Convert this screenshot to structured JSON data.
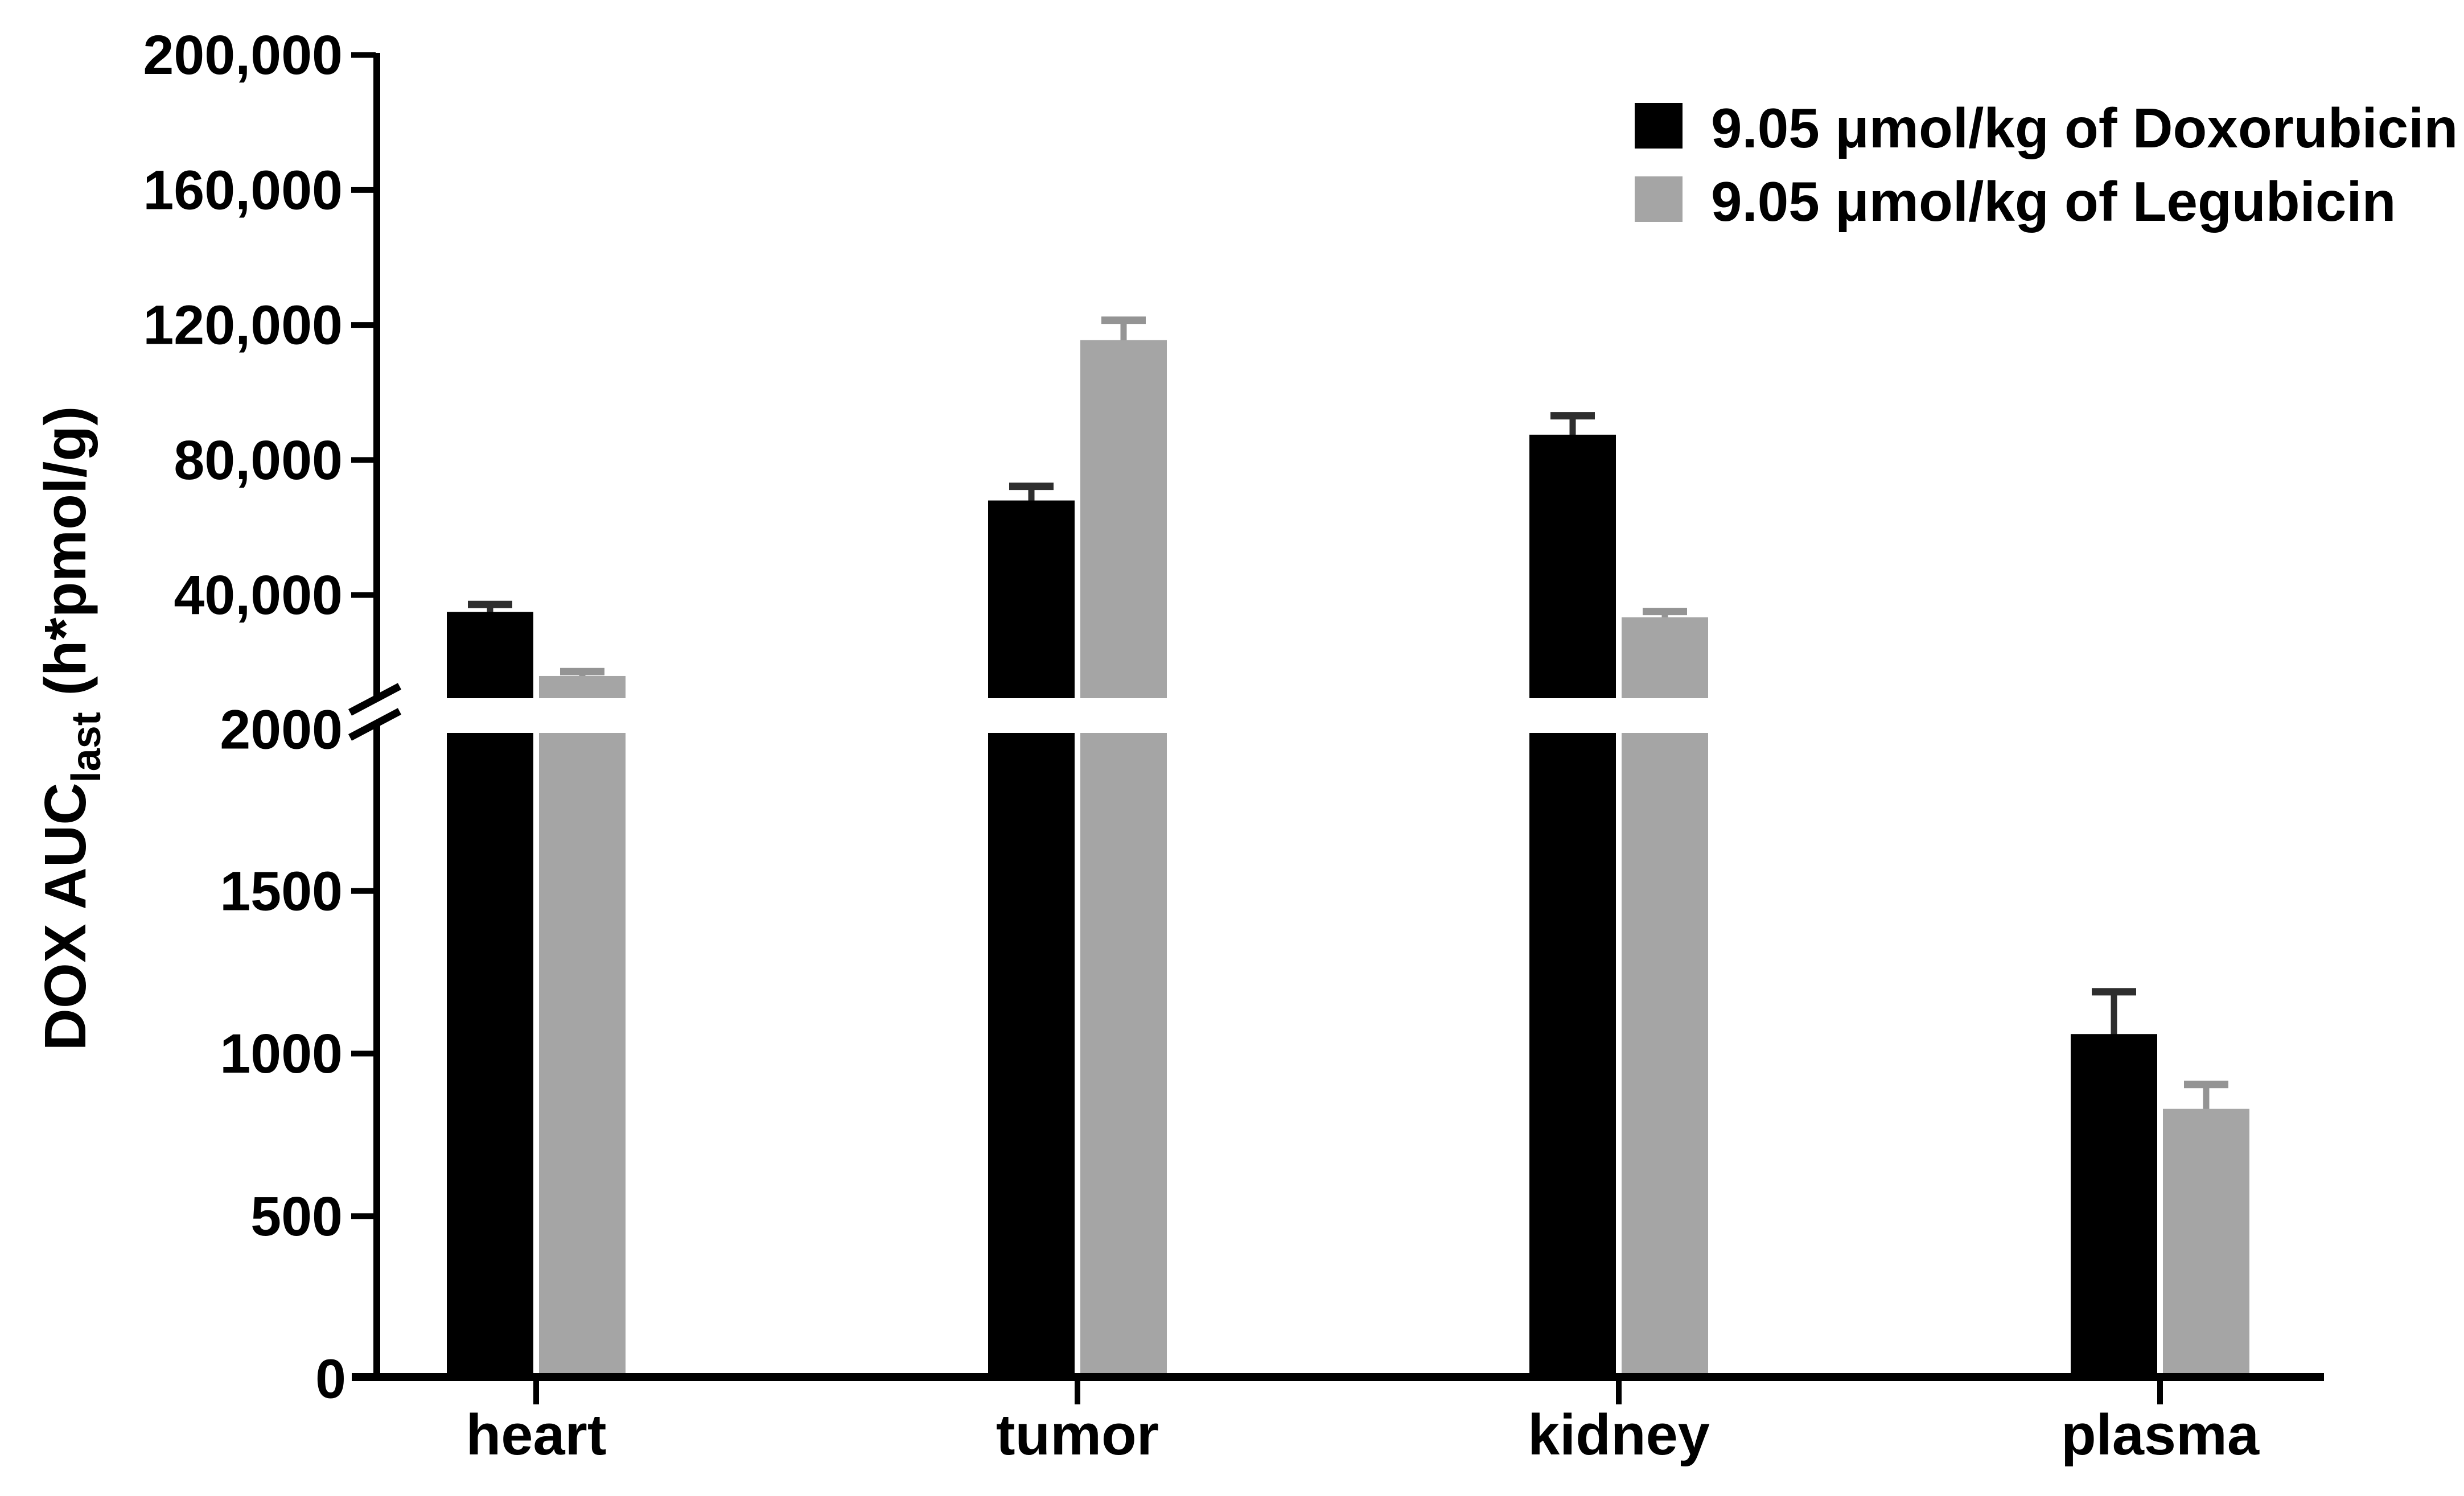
{
  "chart_data": {
    "type": "bar",
    "title": "",
    "categories": [
      "heart",
      "tumor",
      "kidney",
      "plasma"
    ],
    "series": [
      {
        "name": "9.05 μmol/kg of Doxorubicin",
        "color": "#000000",
        "error_color": "#2e2e2e",
        "values": [
          35000,
          68000,
          87500,
          1060
        ],
        "errors": [
          2200,
          4200,
          5600,
          130
        ]
      },
      {
        "name": "9.05 μmol/kg of Legubicin",
        "color": "#a5a5a5",
        "error_color": "#949494",
        "values": [
          16000,
          115500,
          33400,
          830
        ],
        "errors": [
          1300,
          5900,
          1700,
          75
        ]
      }
    ],
    "ylabel_main": "DOX AUC",
    "ylabel_sub": "last",
    "ylabel_unit": " (h*pmol/g)",
    "xlabel": "",
    "axis_break": {
      "lower_min": 0,
      "lower_max": 2000,
      "upper_min": 2000,
      "upper_max": 200000
    },
    "upper_ticks": [
      {
        "value": 200000,
        "label": "200,000"
      },
      {
        "value": 160000,
        "label": "160,000"
      },
      {
        "value": 120000,
        "label": "120,000"
      },
      {
        "value": 80000,
        "label": "80,000"
      },
      {
        "value": 40000,
        "label": "40,000"
      }
    ],
    "break_tick_label": "2000",
    "lower_ticks": [
      {
        "value": 1500,
        "label": "1500"
      },
      {
        "value": 1000,
        "label": "1000"
      },
      {
        "value": 500,
        "label": "500"
      }
    ],
    "zero_label": "0",
    "legend_position": "top-right",
    "grid": false,
    "axis_color": "#000000",
    "background_color": "#ffffff"
  }
}
